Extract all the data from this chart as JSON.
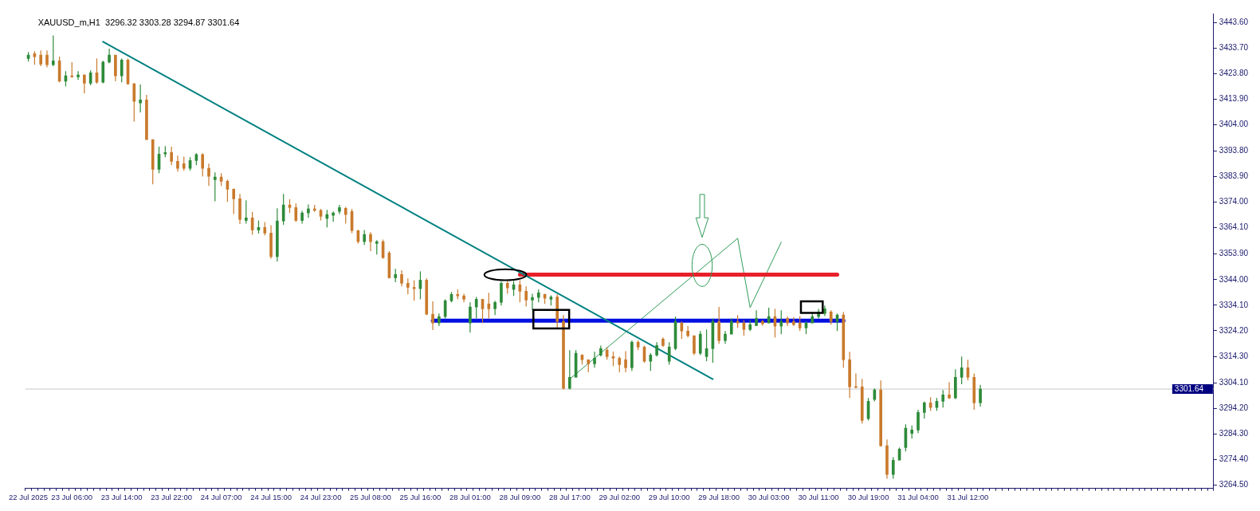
{
  "chart_data": {
    "type": "candlestick",
    "title": "XAUUSD_m,H1  3296.32 3303.28 3294.87 3301.64",
    "categories": [
      "22 Jul 2025",
      null,
      null,
      null,
      null,
      null,
      null,
      "23 Jul 06:00",
      null,
      null,
      null,
      null,
      null,
      null,
      null,
      "23 Jul 14:00",
      null,
      null,
      null,
      null,
      null,
      null,
      null,
      "23 Jul 22:00",
      null,
      null,
      null,
      null,
      null,
      null,
      null,
      "24 Jul 07:00",
      null,
      null,
      null,
      null,
      null,
      null,
      null,
      "24 Jul 15:00",
      null,
      null,
      null,
      null,
      null,
      null,
      null,
      "24 Jul 23:00",
      null,
      null,
      null,
      null,
      null,
      null,
      null,
      "25 Jul 08:00",
      null,
      null,
      null,
      null,
      null,
      null,
      null,
      "25 Jul 16:00",
      null,
      null,
      null,
      null,
      null,
      null,
      null,
      "28 Jul 01:00",
      null,
      null,
      null,
      null,
      null,
      null,
      null,
      "28 Jul 09:00",
      null,
      null,
      null,
      null,
      null,
      null,
      null,
      "28 Jul 17:00",
      null,
      null,
      null,
      null,
      null,
      null,
      null,
      "29 Jul 02:00",
      null,
      null,
      null,
      null,
      null,
      null,
      null,
      "29 Jul 10:00",
      null,
      null,
      null,
      null,
      null,
      null,
      null,
      "29 Jul 18:00",
      null,
      null,
      null,
      null,
      null,
      null,
      null,
      "30 Jul 03:00",
      null,
      null,
      null,
      null,
      null,
      null,
      null,
      "30 Jul 11:00",
      null,
      null,
      null,
      null,
      null,
      null,
      null,
      "30 Jul 19:00",
      null,
      null,
      null,
      null,
      null,
      null,
      null,
      "31 Jul 04:00",
      null,
      null,
      null,
      null,
      null,
      null,
      null,
      "31 Jul 12:00",
      null,
      null,
      null,
      null,
      null,
      null,
      null,
      null,
      null,
      null,
      null,
      null,
      null,
      null,
      null,
      null,
      null,
      null,
      null,
      null,
      null,
      null,
      null,
      null,
      null,
      null,
      null,
      null,
      null,
      null,
      null,
      null,
      null,
      null,
      null,
      null,
      null,
      null,
      null
    ],
    "ohlc": [
      [
        3429.6,
        3432.1,
        3428.4,
        3430.9
      ],
      [
        3431.5,
        3432.4,
        3427.2,
        3430.3
      ],
      [
        3430.9,
        3432.7,
        3426.6,
        3427.4
      ],
      [
        3430.9,
        3432.7,
        3426.2,
        3427.2
      ],
      [
        3427.2,
        3438.5,
        3426.6,
        3428.7
      ],
      [
        3428.7,
        3430.3,
        3420.4,
        3420.8
      ],
      [
        3420.8,
        3424.7,
        3418.8,
        3422.9
      ],
      [
        3422.9,
        3428.2,
        3422.2,
        3422.5
      ],
      [
        3422.5,
        3424.7,
        3421.3,
        3423.2
      ],
      [
        3423.2,
        3423.5,
        3416.1,
        3420.0
      ],
      [
        3420.0,
        3425.0,
        3419.2,
        3424.1
      ],
      [
        3424.1,
        3429.6,
        3419.8,
        3420.4
      ],
      [
        3420.4,
        3428.7,
        3420.0,
        3428.2
      ],
      [
        3428.2,
        3433.4,
        3427.8,
        3430.9
      ],
      [
        3430.9,
        3430.9,
        3420.8,
        3422.9
      ],
      [
        3422.9,
        3429.6,
        3420.4,
        3429.0
      ],
      [
        3429.0,
        3429.6,
        3419.4,
        3419.8
      ],
      [
        3419.8,
        3420.1,
        3405.2,
        3413.0
      ],
      [
        3412.4,
        3419.5,
        3408.7,
        3413.6
      ],
      [
        3413.6,
        3415.5,
        3398.2,
        3398.2
      ],
      [
        3398.2,
        3398.2,
        3380.9,
        3386.7
      ],
      [
        3386.7,
        3395.5,
        3385.2,
        3392.6
      ],
      [
        3392.6,
        3395.7,
        3391.4,
        3393.2
      ],
      [
        3393.2,
        3395.5,
        3388.3,
        3389.8
      ],
      [
        3389.8,
        3392.0,
        3385.8,
        3387.1
      ],
      [
        3388.9,
        3391.6,
        3386.2,
        3387.1
      ],
      [
        3387.1,
        3391.4,
        3386.2,
        3390.1
      ],
      [
        3390.1,
        3392.9,
        3388.3,
        3392.4
      ],
      [
        3392.4,
        3392.9,
        3384.0,
        3387.1
      ],
      [
        3387.1,
        3388.9,
        3380.3,
        3384.0
      ],
      [
        3382.7,
        3385.5,
        3374.3,
        3383.7
      ],
      [
        3383.7,
        3385.2,
        3380.3,
        3382.1
      ],
      [
        3382.1,
        3382.7,
        3374.1,
        3379.0
      ],
      [
        3379.0,
        3379.3,
        3369.4,
        3375.3
      ],
      [
        3375.3,
        3377.2,
        3365.5,
        3367.3
      ],
      [
        3366.9,
        3374.7,
        3365.7,
        3367.9
      ],
      [
        3367.9,
        3370.2,
        3361.4,
        3363.2
      ],
      [
        3363.2,
        3366.9,
        3361.8,
        3364.2
      ],
      [
        3364.2,
        3366.3,
        3361.1,
        3362.0
      ],
      [
        3362.0,
        3365.1,
        3352.1,
        3352.9
      ],
      [
        3352.9,
        3371.6,
        3351.0,
        3366.7
      ],
      [
        3366.7,
        3377.2,
        3365.2,
        3372.9
      ],
      [
        3372.9,
        3375.1,
        3369.8,
        3371.9
      ],
      [
        3371.9,
        3373.5,
        3366.4,
        3366.9
      ],
      [
        3366.9,
        3370.6,
        3365.7,
        3369.8
      ],
      [
        3369.8,
        3373.1,
        3367.9,
        3371.4
      ],
      [
        3371.4,
        3372.9,
        3370.2,
        3370.8
      ],
      [
        3370.8,
        3371.4,
        3366.9,
        3368.5
      ],
      [
        3367.7,
        3371.0,
        3364.2,
        3369.2
      ],
      [
        3368.9,
        3370.4,
        3366.4,
        3369.8
      ],
      [
        3370.4,
        3372.9,
        3369.4,
        3371.9
      ],
      [
        3371.6,
        3372.2,
        3365.7,
        3369.2
      ],
      [
        3370.4,
        3371.4,
        3362.0,
        3363.0
      ],
      [
        3363.0,
        3363.2,
        3358.0,
        3358.7
      ],
      [
        3358.7,
        3363.2,
        3357.4,
        3361.5
      ],
      [
        3361.5,
        3362.4,
        3355.0,
        3358.7
      ],
      [
        3358.0,
        3359.3,
        3353.7,
        3358.7
      ],
      [
        3358.7,
        3359.5,
        3352.1,
        3352.5
      ],
      [
        3354.3,
        3355.0,
        3344.5,
        3344.7
      ],
      [
        3344.7,
        3348.2,
        3343.0,
        3346.0
      ],
      [
        3346.0,
        3347.6,
        3341.4,
        3342.6
      ],
      [
        3342.6,
        3344.5,
        3338.3,
        3341.0
      ],
      [
        3341.0,
        3343.8,
        3335.8,
        3340.5
      ],
      [
        3340.5,
        3347.2,
        3336.4,
        3343.8
      ],
      [
        3343.8,
        3344.5,
        3330.3,
        3330.6
      ],
      [
        3330.6,
        3335.6,
        3324.5,
        3327.2
      ],
      [
        3327.2,
        3330.9,
        3326.0,
        3329.7
      ],
      [
        3329.7,
        3336.4,
        3329.0,
        3335.8
      ],
      [
        3335.8,
        3339.2,
        3335.2,
        3338.3
      ],
      [
        3338.3,
        3340.2,
        3336.4,
        3337.7
      ],
      [
        3337.7,
        3338.5,
        3335.2,
        3336.4
      ],
      [
        3327.2,
        3335.2,
        3323.5,
        3333.4
      ],
      [
        3333.4,
        3337.3,
        3329.0,
        3336.4
      ],
      [
        3336.4,
        3336.4,
        3327.2,
        3332.7
      ],
      [
        3334.6,
        3338.9,
        3329.0,
        3332.7
      ],
      [
        3332.7,
        3335.8,
        3330.3,
        3335.2
      ],
      [
        3335.2,
        3343.2,
        3334.0,
        3342.6
      ],
      [
        3342.6,
        3343.5,
        3338.5,
        3340.8
      ],
      [
        3340.2,
        3343.5,
        3337.7,
        3342.0
      ],
      [
        3342.0,
        3343.8,
        3335.2,
        3339.5
      ],
      [
        3339.5,
        3341.4,
        3333.6,
        3336.1
      ],
      [
        3336.1,
        3338.5,
        3332.1,
        3337.1
      ],
      [
        3337.1,
        3340.2,
        3335.2,
        3338.9
      ],
      [
        3338.3,
        3338.5,
        3334.6,
        3336.8
      ],
      [
        3336.4,
        3337.9,
        3334.0,
        3337.3
      ],
      [
        3337.3,
        3338.3,
        3325.3,
        3327.8
      ],
      [
        3327.8,
        3330.3,
        3301.5,
        3301.9
      ],
      [
        3301.9,
        3316.7,
        3301.5,
        3306.2
      ],
      [
        3306.2,
        3316.7,
        3306.2,
        3315.5
      ],
      [
        3314.8,
        3315.1,
        3311.1,
        3313.0
      ],
      [
        3313.0,
        3313.0,
        3308.1,
        3311.4
      ],
      [
        3311.4,
        3316.1,
        3309.9,
        3313.6
      ],
      [
        3314.8,
        3318.5,
        3314.2,
        3317.3
      ],
      [
        3316.7,
        3317.9,
        3313.0,
        3314.2
      ],
      [
        3314.2,
        3316.1,
        3310.5,
        3313.6
      ],
      [
        3313.6,
        3314.2,
        3308.1,
        3311.1
      ],
      [
        3313.0,
        3316.3,
        3308.1,
        3309.9
      ],
      [
        3309.9,
        3320.4,
        3308.7,
        3319.8
      ],
      [
        3319.8,
        3320.4,
        3316.7,
        3317.9
      ],
      [
        3317.9,
        3318.5,
        3311.8,
        3312.4
      ],
      [
        3312.4,
        3315.5,
        3308.7,
        3314.8
      ],
      [
        3314.8,
        3319.8,
        3314.2,
        3318.5
      ],
      [
        3321.0,
        3321.6,
        3317.9,
        3318.5
      ],
      [
        3312.4,
        3319.8,
        3311.1,
        3317.9
      ],
      [
        3317.3,
        3329.7,
        3316.7,
        3327.8
      ],
      [
        3327.2,
        3327.8,
        3321.0,
        3324.1
      ],
      [
        3324.1,
        3326.0,
        3321.6,
        3322.3
      ],
      [
        3322.3,
        3322.3,
        3314.8,
        3315.5
      ],
      [
        3315.5,
        3324.1,
        3314.8,
        3322.9
      ],
      [
        3314.2,
        3324.7,
        3312.4,
        3317.3
      ],
      [
        3317.3,
        3329.0,
        3311.8,
        3327.8
      ],
      [
        3327.8,
        3333.4,
        3319.2,
        3320.4
      ],
      [
        3320.4,
        3324.1,
        3319.2,
        3322.9
      ],
      [
        3322.9,
        3329.0,
        3322.9,
        3327.8
      ],
      [
        3327.8,
        3330.3,
        3325.3,
        3327.2
      ],
      [
        3327.2,
        3328.4,
        3322.3,
        3324.7
      ],
      [
        3324.7,
        3328.4,
        3324.1,
        3326.6
      ],
      [
        3326.2,
        3332.1,
        3326.0,
        3329.0
      ],
      [
        3327.8,
        3328.4,
        3326.2,
        3326.9
      ],
      [
        3327.2,
        3333.1,
        3327.2,
        3329.7
      ],
      [
        3329.7,
        3332.7,
        3321.6,
        3326.0
      ],
      [
        3326.0,
        3332.1,
        3322.9,
        3327.8
      ],
      [
        3329.0,
        3329.7,
        3326.0,
        3327.2
      ],
      [
        3327.8,
        3329.4,
        3326.0,
        3326.6
      ],
      [
        3327.2,
        3329.9,
        3324.1,
        3325.3
      ],
      [
        3325.3,
        3327.8,
        3322.9,
        3327.2
      ],
      [
        3327.2,
        3331.5,
        3327.2,
        3329.7
      ],
      [
        3329.7,
        3332.7,
        3329.0,
        3331.5
      ],
      [
        3330.9,
        3334.0,
        3329.9,
        3332.7
      ],
      [
        3331.5,
        3332.1,
        3326.6,
        3327.8
      ],
      [
        3327.8,
        3330.9,
        3324.1,
        3330.3
      ],
      [
        3330.3,
        3331.5,
        3309.9,
        3313.0
      ],
      [
        3313.0,
        3316.1,
        3298.2,
        3302.5
      ],
      [
        3302.5,
        3307.7,
        3301.9,
        3302.3
      ],
      [
        3302.5,
        3305.6,
        3288.3,
        3289.5
      ],
      [
        3290.2,
        3298.2,
        3289.5,
        3296.9
      ],
      [
        3297.6,
        3301.9,
        3296.9,
        3301.3
      ],
      [
        3301.3,
        3305.0,
        3279.3,
        3279.7
      ],
      [
        3279.7,
        3282.1,
        3266.9,
        3268.6
      ],
      [
        3268.6,
        3275.3,
        3266.9,
        3274.1
      ],
      [
        3274.1,
        3279.0,
        3274.1,
        3278.4
      ],
      [
        3279.0,
        3288.0,
        3277.5,
        3286.5
      ],
      [
        3284.5,
        3287.5,
        3282.5,
        3285.8
      ],
      [
        3285.8,
        3293.6,
        3284.6,
        3292.6
      ],
      [
        3292.6,
        3296.9,
        3290.2,
        3296.3
      ],
      [
        3296.3,
        3298.5,
        3293.2,
        3294.5
      ],
      [
        3294.5,
        3298.2,
        3293.2,
        3296.9
      ],
      [
        3296.9,
        3301.3,
        3294.5,
        3299.4
      ],
      [
        3299.4,
        3304.3,
        3297.8,
        3298.2
      ],
      [
        3298.2,
        3309.3,
        3297.8,
        3306.2
      ],
      [
        3306.2,
        3314.2,
        3303.5,
        3309.9
      ],
      [
        3309.9,
        3313.0,
        3305.0,
        3306.2
      ],
      [
        3306.2,
        3307.7,
        3293.6,
        3296.3
      ],
      [
        3296.32,
        3303.28,
        3294.87,
        3301.64
      ],
      null,
      null,
      null,
      null,
      null,
      null,
      null,
      null,
      null,
      null,
      null,
      null,
      null,
      null,
      null,
      null,
      null,
      null,
      null,
      null,
      null,
      null,
      null,
      null,
      null,
      null,
      null,
      null,
      null,
      null,
      null,
      null,
      null,
      null,
      null,
      null,
      null
    ],
    "colors": [
      "#2e8b3a",
      "#c97a2c",
      "#c97a2c",
      "#c97a2c",
      "#2e8b3a",
      "#c97a2c",
      "#2e8b3a",
      "#c97a2c",
      "#2e8b3a",
      "#c97a2c",
      "#2e8b3a",
      "#c97a2c",
      "#2e8b3a",
      "#2e8b3a",
      "#c97a2c",
      "#2e8b3a",
      "#c97a2c",
      "#c97a2c",
      "#2e8b3a",
      "#c97a2c",
      "#c97a2c",
      "#2e8b3a",
      "#2e8b3a",
      "#c97a2c",
      "#c97a2c",
      "#c97a2c",
      "#2e8b3a",
      "#2e8b3a",
      "#c97a2c",
      "#c97a2c",
      "#2e8b3a",
      "#c97a2c",
      "#c97a2c",
      "#c97a2c",
      "#c97a2c",
      "#2e8b3a",
      "#c97a2c",
      "#2e8b3a",
      "#c97a2c",
      "#c97a2c",
      "#2e8b3a",
      "#2e8b3a",
      "#c97a2c",
      "#c97a2c",
      "#2e8b3a",
      "#2e8b3a",
      "#c97a2c",
      "#c97a2c",
      "#2e8b3a",
      "#2e8b3a",
      "#2e8b3a",
      "#c97a2c",
      "#c97a2c",
      "#c97a2c",
      "#2e8b3a",
      "#c97a2c",
      "#2e8b3a",
      "#c97a2c",
      "#c97a2c",
      "#2e8b3a",
      "#c97a2c",
      "#c97a2c",
      "#c97a2c",
      "#2e8b3a",
      "#c97a2c",
      "#c97a2c",
      "#2e8b3a",
      "#2e8b3a",
      "#2e8b3a",
      "#c97a2c",
      "#c97a2c",
      "#2e8b3a",
      "#2e8b3a",
      "#c97a2c",
      "#c97a2c",
      "#2e8b3a",
      "#2e8b3a",
      "#c97a2c",
      "#2e8b3a",
      "#c97a2c",
      "#c97a2c",
      "#2e8b3a",
      "#2e8b3a",
      "#c97a2c",
      "#2e8b3a",
      "#c97a2c",
      "#c97a2c",
      "#2e8b3a",
      "#2e8b3a",
      "#c97a2c",
      "#c97a2c",
      "#2e8b3a",
      "#2e8b3a",
      "#c97a2c",
      "#c97a2c",
      "#c97a2c",
      "#c97a2c",
      "#2e8b3a",
      "#c97a2c",
      "#c97a2c",
      "#2e8b3a",
      "#2e8b3a",
      "#c97a2c",
      "#2e8b3a",
      "#2e8b3a",
      "#c97a2c",
      "#c97a2c",
      "#c97a2c",
      "#2e8b3a",
      "#2e8b3a",
      "#2e8b3a",
      "#c97a2c",
      "#2e8b3a",
      "#2e8b3a",
      "#c97a2c",
      "#c97a2c",
      "#2e8b3a",
      "#2e8b3a",
      "#c97a2c",
      "#2e8b3a",
      "#c97a2c",
      "#2e8b3a",
      "#c97a2c",
      "#c97a2c",
      "#c97a2c",
      "#2e8b3a",
      "#2e8b3a",
      "#2e8b3a",
      "#2e8b3a",
      "#c97a2c",
      "#2e8b3a",
      "#c97a2c",
      "#c97a2c",
      "#c97a2c",
      "#c97a2c",
      "#2e8b3a",
      "#2e8b3a",
      "#c97a2c",
      "#c97a2c",
      "#2e8b3a",
      "#2e8b3a",
      "#2e8b3a",
      "#2e8b3a",
      "#2e8b3a",
      "#2e8b3a",
      "#c97a2c",
      "#2e8b3a",
      "#2e8b3a",
      "#c97a2c",
      "#2e8b3a",
      "#2e8b3a",
      "#c97a2c",
      "#c97a2c",
      "#2e8b3a",
      null,
      null,
      null,
      null,
      null,
      null,
      null,
      null,
      null,
      null,
      null,
      null,
      null,
      null,
      null,
      null,
      null,
      null,
      null,
      null,
      null,
      null,
      null,
      null,
      null,
      null,
      null,
      null,
      null,
      null,
      null,
      null,
      null,
      null,
      null,
      null,
      null
    ],
    "series": [
      {
        "type": "line",
        "color": "#008080",
        "values": [
          null,
          null,
          null,
          null,
          null,
          null,
          null,
          null,
          null,
          null,
          null,
          null,
          3436.1,
          null,
          null,
          null,
          null,
          null,
          null,
          null,
          null,
          null,
          null,
          null,
          null,
          null,
          null,
          null,
          null,
          null,
          null,
          null,
          null,
          null,
          null,
          null,
          null,
          null,
          null,
          null,
          null,
          null,
          null,
          null,
          null,
          null,
          null,
          null,
          null,
          null,
          null,
          null,
          null,
          null,
          null,
          null,
          null,
          null,
          null,
          null,
          null,
          null,
          null,
          null,
          null,
          null,
          null,
          null,
          null,
          null,
          null,
          null,
          null,
          null,
          null,
          null,
          null,
          null,
          null,
          null,
          null,
          null,
          null,
          null,
          null,
          null,
          null,
          null,
          null,
          null,
          null,
          null,
          null,
          null,
          null,
          null,
          null,
          null,
          null,
          null,
          null,
          null,
          null,
          null,
          null,
          null,
          null,
          null,
          null,
          null,
          3305.5,
          null,
          null,
          null,
          null,
          null,
          null,
          null,
          null,
          null,
          null,
          null,
          null,
          null,
          null,
          null,
          null,
          null,
          null,
          null,
          null,
          null,
          null,
          null,
          null,
          null,
          null,
          null,
          null,
          null,
          null,
          null,
          null,
          null,
          null,
          null,
          null,
          null,
          null,
          null,
          null,
          null,
          null,
          null,
          null,
          null,
          null,
          null,
          null,
          null,
          null,
          null,
          null,
          null,
          null,
          null,
          null,
          null,
          null,
          null,
          null,
          null,
          null,
          null,
          null,
          null,
          null,
          null,
          null,
          null,
          null,
          null,
          null,
          null,
          null,
          null,
          null,
          null,
          null,
          null,
          null
        ]
      },
      {
        "type": "line",
        "color": "#e8202a",
        "values": [
          null,
          null,
          null,
          null,
          null,
          null,
          null,
          null,
          null,
          null,
          null,
          null,
          null,
          null,
          null,
          null,
          null,
          null,
          null,
          null,
          null,
          null,
          null,
          null,
          null,
          null,
          null,
          null,
          null,
          null,
          null,
          null,
          null,
          null,
          null,
          null,
          null,
          null,
          null,
          null,
          null,
          null,
          null,
          null,
          null,
          null,
          null,
          null,
          null,
          null,
          null,
          null,
          null,
          null,
          null,
          null,
          null,
          null,
          null,
          null,
          null,
          null,
          null,
          null,
          null,
          null,
          null,
          null,
          null,
          null,
          null,
          null,
          null,
          null,
          null,
          null,
          null,
          null,
          null,
          3345.9,
          null,
          null,
          null,
          null,
          null,
          null,
          null,
          null,
          null,
          null,
          null,
          null,
          null,
          null,
          null,
          null,
          null,
          null,
          null,
          null,
          null,
          null,
          null,
          null,
          null,
          null,
          null,
          null,
          null,
          null,
          null,
          null,
          null,
          null,
          null,
          null,
          null,
          null,
          null,
          null,
          null,
          null,
          null,
          null,
          null,
          null,
          null,
          null,
          null,
          null,
          3345.9,
          null,
          null,
          null,
          null,
          null,
          null,
          null,
          null,
          null,
          null,
          null,
          null,
          null,
          null,
          null,
          null,
          null,
          null,
          null,
          null,
          null,
          null,
          null,
          null,
          null,
          null,
          null,
          null,
          null,
          null,
          null,
          null,
          null,
          null,
          null,
          null,
          null,
          null,
          null,
          null,
          null,
          null,
          null,
          null,
          null,
          null,
          null,
          null,
          null,
          null,
          null,
          null,
          null,
          null,
          null,
          null,
          null,
          null,
          null,
          null
        ]
      },
      {
        "type": "line",
        "color": "#0010e0",
        "values": [
          null,
          null,
          null,
          null,
          null,
          null,
          null,
          null,
          null,
          null,
          null,
          null,
          null,
          null,
          null,
          null,
          null,
          null,
          null,
          null,
          null,
          null,
          null,
          null,
          null,
          null,
          null,
          null,
          null,
          null,
          null,
          null,
          null,
          null,
          null,
          null,
          null,
          null,
          null,
          null,
          null,
          null,
          null,
          null,
          null,
          null,
          null,
          null,
          null,
          null,
          null,
          null,
          null,
          null,
          null,
          null,
          null,
          null,
          null,
          null,
          null,
          null,
          null,
          null,
          null,
          3328.1,
          null,
          null,
          null,
          null,
          null,
          null,
          null,
          null,
          null,
          null,
          null,
          null,
          null,
          null,
          null,
          null,
          null,
          null,
          null,
          null,
          null,
          null,
          null,
          null,
          null,
          null,
          null,
          null,
          null,
          null,
          null,
          null,
          null,
          null,
          null,
          null,
          null,
          null,
          null,
          null,
          null,
          null,
          null,
          null,
          null,
          null,
          null,
          null,
          null,
          null,
          null,
          null,
          null,
          null,
          null,
          null,
          null,
          null,
          null,
          null,
          null,
          null,
          null,
          null,
          null,
          3328.1,
          null,
          null,
          null,
          null,
          null,
          null,
          null,
          null,
          null,
          null,
          null,
          null,
          null,
          null,
          null,
          null,
          null,
          null,
          null,
          null,
          null,
          null,
          null,
          null,
          null,
          null,
          null,
          null,
          null,
          null,
          null,
          null,
          null,
          null,
          null,
          null,
          null,
          null,
          null,
          null,
          null,
          null,
          null,
          null,
          null,
          null,
          null,
          null,
          null,
          null,
          null,
          null,
          null,
          null,
          null,
          null,
          null,
          null,
          null
        ]
      },
      {
        "type": "line",
        "color": "#2e9b57",
        "values": [
          null,
          null,
          null,
          null,
          null,
          null,
          null,
          null,
          null,
          null,
          null,
          null,
          null,
          null,
          null,
          null,
          null,
          null,
          null,
          null,
          null,
          null,
          null,
          null,
          null,
          null,
          null,
          null,
          null,
          null,
          null,
          null,
          null,
          null,
          null,
          null,
          null,
          null,
          null,
          null,
          null,
          null,
          null,
          null,
          null,
          null,
          null,
          null,
          null,
          null,
          null,
          null,
          null,
          null,
          null,
          null,
          null,
          null,
          null,
          null,
          null,
          null,
          null,
          null,
          null,
          null,
          null,
          null,
          null,
          null,
          null,
          null,
          null,
          null,
          null,
          null,
          null,
          null,
          null,
          null,
          null,
          null,
          null,
          null,
          null,
          null,
          null,
          3305.5,
          null,
          null,
          null,
          null,
          null,
          null,
          null,
          null,
          null,
          null,
          null,
          null,
          null,
          null,
          null,
          null,
          null,
          null,
          null,
          null,
          null,
          null,
          null,
          null,
          null,
          null,
          3360.0,
          null,
          3333.2,
          null,
          null,
          null,
          null,
          3358.5,
          null,
          null,
          null,
          null,
          null,
          null,
          null,
          null,
          null,
          null,
          null,
          null,
          null,
          null,
          null,
          null,
          null,
          null,
          null,
          null,
          null,
          null,
          null,
          null,
          null,
          null,
          null,
          null,
          null,
          null,
          null,
          null,
          null,
          null,
          null,
          null,
          null,
          null,
          null,
          null,
          null,
          null,
          null,
          null,
          null,
          null,
          null,
          null,
          null,
          null,
          null,
          null,
          null,
          null,
          null,
          null,
          null,
          null,
          null,
          null,
          null,
          null,
          null,
          null,
          null,
          null,
          null,
          null,
          null
        ]
      }
    ],
    "ylim": [
      3263.2,
      3447.0
    ],
    "yticks": [
      {
        "value": 3443.6,
        "label": "3443.60"
      },
      {
        "value": 3433.7,
        "label": "3433.70"
      },
      {
        "value": 3423.8,
        "label": "3423.80"
      },
      {
        "value": 3413.9,
        "label": "3413.90"
      },
      {
        "value": 3404,
        "label": "3404.00"
      },
      {
        "value": 3393.8,
        "label": "3393.80"
      },
      {
        "value": 3383.9,
        "label": "3383.90"
      },
      {
        "value": 3374,
        "label": "3374.00"
      },
      {
        "value": 3364.1,
        "label": "3364.10"
      },
      {
        "value": 3353.9,
        "label": "3353.90"
      },
      {
        "value": 3344,
        "label": "3344.00"
      },
      {
        "value": 3334.1,
        "label": "3334.10"
      },
      {
        "value": 3324.2,
        "label": "3324.20"
      },
      {
        "value": 3314.3,
        "label": "3314.30"
      },
      {
        "value": 3304.1,
        "label": "3304.10"
      },
      {
        "value": 3294.2,
        "label": "3294.20"
      },
      {
        "value": 3284.3,
        "label": "3284.30"
      },
      {
        "value": 3274.4,
        "label": "3274.40"
      },
      {
        "value": 3264.5,
        "label": "3264.50"
      }
    ],
    "ref_lines": [
      {
        "axis": "y",
        "value": 3301.64,
        "label": "3301.64",
        "color": "#c8c8c8"
      }
    ],
    "grid": false,
    "legend": false
  }
}
